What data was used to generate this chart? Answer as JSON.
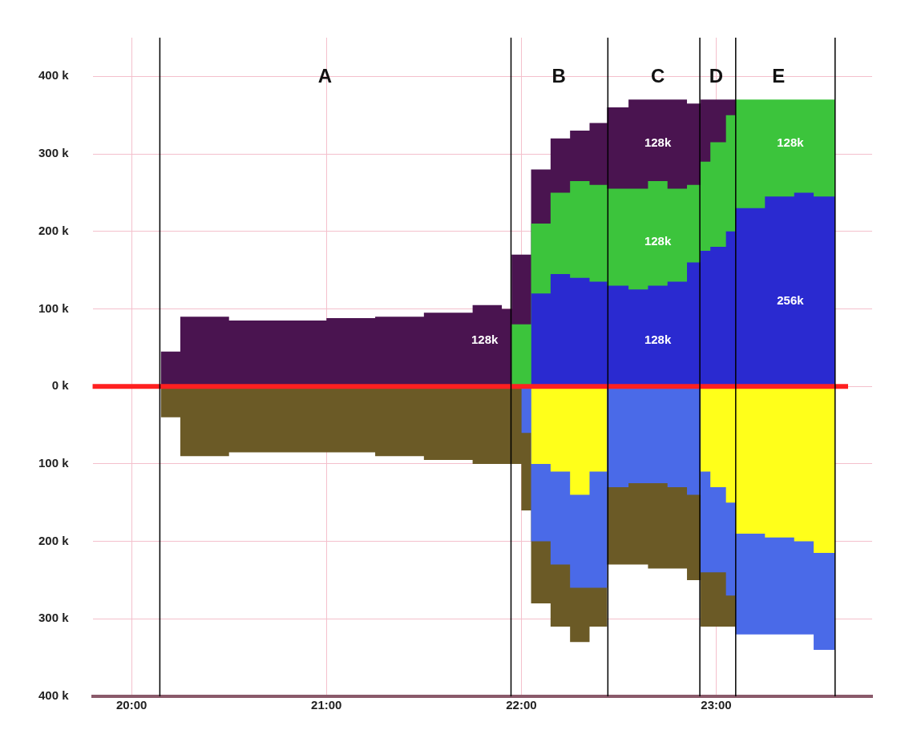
{
  "chart_data": {
    "type": "area",
    "legend": false,
    "grid": true,
    "x": [
      20.15,
      20.25,
      20.25,
      20.5,
      20.5,
      20.75,
      20.75,
      21.0,
      21.0,
      21.25,
      21.25,
      21.5,
      21.5,
      21.75,
      21.75,
      21.9,
      21.9,
      21.95,
      21.95,
      22.0,
      22.0,
      22.05,
      22.05,
      22.15,
      22.15,
      22.25,
      22.25,
      22.35,
      22.35,
      22.44,
      22.44,
      22.55,
      22.55,
      22.65,
      22.65,
      22.75,
      22.75,
      22.85,
      22.85,
      22.92,
      22.92,
      22.97,
      22.97,
      23.05,
      23.05,
      23.1,
      23.1,
      23.25,
      23.25,
      23.4,
      23.4,
      23.5,
      23.5,
      23.61,
      23.61
    ],
    "series": [
      {
        "color": "#2a2ad0",
        "values": [
          null,
          null,
          null,
          null,
          null,
          null,
          null,
          null,
          null,
          null,
          null,
          null,
          null,
          null,
          null,
          null,
          null,
          null,
          null,
          null,
          null,
          null,
          120,
          120,
          145,
          145,
          140,
          140,
          135,
          135,
          130,
          130,
          125,
          125,
          130,
          130,
          135,
          135,
          160,
          160,
          175,
          175,
          180,
          180,
          200,
          200,
          230,
          230,
          245,
          245,
          250,
          250,
          245,
          245,
          245
        ]
      },
      {
        "color": "#3cc43c",
        "values": [
          null,
          null,
          null,
          null,
          null,
          null,
          null,
          null,
          null,
          null,
          null,
          null,
          null,
          null,
          null,
          null,
          null,
          null,
          80,
          80,
          80,
          80,
          210,
          210,
          250,
          250,
          265,
          265,
          260,
          260,
          255,
          255,
          255,
          255,
          265,
          265,
          255,
          255,
          260,
          260,
          290,
          290,
          315,
          315,
          350,
          350,
          370,
          370,
          370,
          370,
          370,
          370,
          370,
          370,
          370
        ]
      },
      {
        "color": "#4a1450",
        "values": [
          45,
          45,
          90,
          90,
          85,
          85,
          85,
          85,
          88,
          88,
          90,
          90,
          95,
          95,
          105,
          105,
          100,
          100,
          170,
          170,
          170,
          170,
          280,
          280,
          320,
          320,
          330,
          330,
          340,
          340,
          360,
          360,
          370,
          370,
          370,
          370,
          370,
          370,
          365,
          365,
          370,
          370,
          370,
          370,
          370,
          370,
          null,
          null,
          null,
          null,
          null,
          null,
          null,
          null,
          null
        ]
      },
      {
        "color": "#ffff1a",
        "values": [
          null,
          null,
          null,
          null,
          null,
          null,
          null,
          null,
          null,
          null,
          null,
          null,
          null,
          null,
          null,
          null,
          null,
          null,
          null,
          null,
          null,
          null,
          -100,
          -100,
          -110,
          -110,
          -140,
          -140,
          -110,
          -110,
          null,
          null,
          null,
          null,
          null,
          null,
          null,
          null,
          null,
          null,
          -110,
          -110,
          -130,
          -130,
          -150,
          -150,
          -190,
          -190,
          -195,
          -195,
          -200,
          -200,
          -215,
          -215,
          -215
        ]
      },
      {
        "color": "#4a6ae8",
        "values": [
          null,
          null,
          null,
          null,
          null,
          null,
          null,
          null,
          null,
          null,
          null,
          null,
          null,
          null,
          null,
          null,
          null,
          null,
          null,
          null,
          -60,
          -60,
          -200,
          -200,
          -230,
          -230,
          -260,
          -260,
          -260,
          -260,
          -130,
          -130,
          -125,
          -125,
          -125,
          -125,
          -130,
          -130,
          -140,
          -140,
          -240,
          -240,
          -240,
          -240,
          -270,
          -270,
          -320,
          -320,
          -320,
          -320,
          -320,
          -320,
          -340,
          -340,
          -340
        ]
      },
      {
        "color": "#6b5a26",
        "values": [
          -40,
          -40,
          -90,
          -90,
          -85,
          -85,
          -85,
          -85,
          -85,
          -85,
          -90,
          -90,
          -95,
          -95,
          -100,
          -100,
          -100,
          -100,
          -100,
          -100,
          -160,
          -160,
          -280,
          -280,
          -310,
          -310,
          -330,
          -330,
          -310,
          -310,
          -230,
          -230,
          -230,
          -230,
          -235,
          -235,
          -235,
          -235,
          -250,
          -250,
          -310,
          -310,
          -310,
          -310,
          -310,
          -310,
          null,
          null,
          null,
          null,
          null,
          null,
          null,
          null,
          null
        ]
      }
    ],
    "xlim": [
      19.8,
      23.8
    ],
    "xticks": [
      {
        "value": 20,
        "label": "20:00"
      },
      {
        "value": 21,
        "label": "21:00"
      },
      {
        "value": 22,
        "label": "22:00"
      },
      {
        "value": 23,
        "label": "23:00"
      }
    ],
    "ylim": [
      -400,
      450
    ],
    "yticks": [
      {
        "value": -400,
        "label": "400 k"
      },
      {
        "value": -300,
        "label": "300 k"
      },
      {
        "value": -200,
        "label": "200 k"
      },
      {
        "value": -100,
        "label": "100 k"
      },
      {
        "value": 0,
        "label": "0 k"
      },
      {
        "value": 100,
        "label": "100 k"
      },
      {
        "value": 200,
        "label": "200 k"
      },
      {
        "value": 300,
        "label": "300 k"
      },
      {
        "value": 400,
        "label": "400 k"
      }
    ],
    "ref_lines": [
      {
        "axis": "y",
        "value": 0,
        "color": "#ff2020"
      },
      {
        "axis": "x",
        "value": 20.145,
        "color": "#000000"
      },
      {
        "axis": "x",
        "value": 21.947,
        "color": "#000000"
      },
      {
        "axis": "x",
        "value": 22.444,
        "color": "#000000"
      },
      {
        "axis": "x",
        "value": 22.916,
        "color": "#000000"
      },
      {
        "axis": "x",
        "value": 23.1,
        "color": "#000000"
      },
      {
        "axis": "x",
        "value": 23.61,
        "color": "#000000"
      }
    ],
    "annotations": [
      "A",
      "B",
      "C",
      "D",
      "E",
      "128k",
      "128k",
      "128k",
      "128k",
      "128k",
      "256k"
    ]
  }
}
